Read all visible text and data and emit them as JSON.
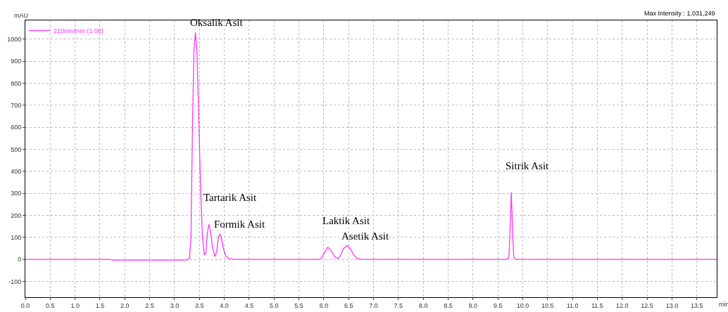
{
  "chart_data": {
    "type": "line",
    "xlabel": "min",
    "ylabel": "mAU",
    "x": [
      0,
      1.7,
      1.75,
      3.25,
      3.3,
      3.33,
      3.36,
      3.39,
      3.42,
      3.45,
      3.48,
      3.52,
      3.56,
      3.6,
      3.63,
      3.66,
      3.69,
      3.72,
      3.76,
      3.81,
      3.85,
      3.88,
      3.91,
      3.94,
      3.98,
      4.03,
      4.1,
      4.2,
      5.9,
      5.95,
      6.0,
      6.08,
      6.15,
      6.22,
      6.28,
      6.33,
      6.4,
      6.47,
      6.53,
      6.6,
      6.67,
      6.75,
      9.65,
      9.72,
      9.74,
      9.77,
      9.8,
      9.82,
      9.86,
      13.9
    ],
    "series": [
      {
        "name": "210nm4nm (1.00)",
        "color": "#ff33ff",
        "values": [
          0,
          0,
          -3,
          -3,
          5,
          100,
          600,
          950,
          1031,
          950,
          700,
          350,
          100,
          20,
          30,
          120,
          160,
          130,
          60,
          12,
          40,
          100,
          115,
          100,
          50,
          15,
          3,
          0,
          0,
          5,
          25,
          55,
          40,
          12,
          3,
          15,
          50,
          62,
          50,
          20,
          5,
          0,
          0,
          5,
          100,
          305,
          100,
          10,
          0,
          0
        ]
      }
    ],
    "xlim": [
      0,
      13.9
    ],
    "ylim": [
      -172,
      1086
    ],
    "xticks": [
      {
        "value": 0,
        "label": "0.0"
      },
      {
        "value": 0.5,
        "label": "0.5"
      },
      {
        "value": 1,
        "label": "1.0"
      },
      {
        "value": 1.5,
        "label": "1.5"
      },
      {
        "value": 2,
        "label": "2.0"
      },
      {
        "value": 2.5,
        "label": "2.5"
      },
      {
        "value": 3,
        "label": "3.0"
      },
      {
        "value": 3.5,
        "label": "3.5"
      },
      {
        "value": 4,
        "label": "4.0"
      },
      {
        "value": 4.5,
        "label": "4.5"
      },
      {
        "value": 5,
        "label": "5.0"
      },
      {
        "value": 5.5,
        "label": "5.5"
      },
      {
        "value": 6,
        "label": "6.0"
      },
      {
        "value": 6.5,
        "label": "6.5"
      },
      {
        "value": 7,
        "label": "7.0"
      },
      {
        "value": 7.5,
        "label": "7.5"
      },
      {
        "value": 8,
        "label": "8.0"
      },
      {
        "value": 8.5,
        "label": "8.5"
      },
      {
        "value": 9,
        "label": "9.0"
      },
      {
        "value": 9.5,
        "label": "9.5"
      },
      {
        "value": 10,
        "label": "10.0"
      },
      {
        "value": 10.5,
        "label": "10.5"
      },
      {
        "value": 11,
        "label": "11.0"
      },
      {
        "value": 11.5,
        "label": "11.5"
      },
      {
        "value": 12,
        "label": "12.0"
      },
      {
        "value": 12.5,
        "label": "12.5"
      },
      {
        "value": 13,
        "label": "13.0"
      },
      {
        "value": 13.5,
        "label": "13.5"
      }
    ],
    "yticks": [
      -100,
      0,
      100,
      200,
      300,
      400,
      500,
      600,
      700,
      800,
      900,
      1000
    ],
    "grid": true,
    "legend": "top left",
    "marker": "none",
    "line_style": "solid",
    "annotations": [
      {
        "text": "Oksalik Asit",
        "x": 3.42,
        "y": 1031
      },
      {
        "text": "Tartarik Asit",
        "x": 3.69,
        "y": 160
      },
      {
        "text": "Formik Asit",
        "x": 3.91,
        "y": 115
      },
      {
        "text": "Laktik Asit",
        "x": 6.08,
        "y": 55
      },
      {
        "text": "Asetik Asit",
        "x": 6.47,
        "y": 62
      },
      {
        "text": "Sitrik Asit",
        "x": 9.77,
        "y": 305
      },
      "Max Intensity : 1,031,249"
    ]
  }
}
